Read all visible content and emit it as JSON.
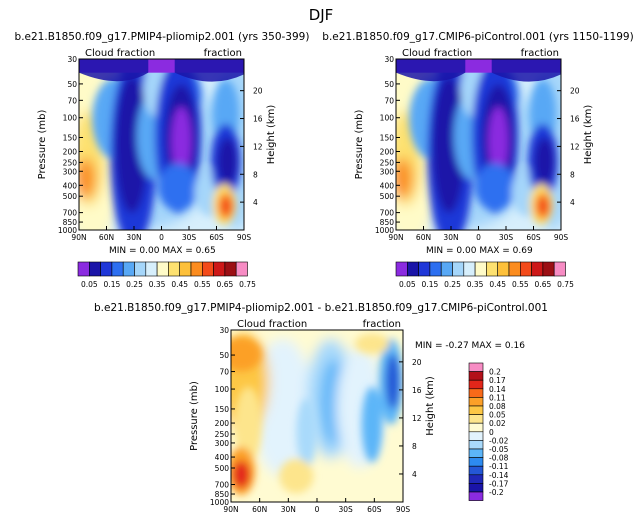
{
  "figure": {
    "title": "DJF"
  },
  "colors": {
    "seq": [
      "#8b2be0",
      "#1a14a8",
      "#1f37d8",
      "#2d6ff0",
      "#58a8f5",
      "#a5d6fa",
      "#d7effc",
      "#fffbc8",
      "#fde170",
      "#fdc03a",
      "#fb8c1f",
      "#f34a1a",
      "#cd1818",
      "#9b0f14",
      "#f78cc4"
    ],
    "div": [
      "#8b2be0",
      "#1a14a8",
      "#2028b8",
      "#2457d6",
      "#2d8bf0",
      "#5cb5f8",
      "#a9dafb",
      "#e2f3fd",
      "#fffbd2",
      "#fde58c",
      "#fdc745",
      "#fca028",
      "#f86a19",
      "#e3261a",
      "#b3101a",
      "#f78cc4"
    ]
  },
  "chart_data": [
    {
      "type": "heatmap",
      "title": "b.e21.B1850.f09_g17.PMIP4-pliomip2.001 (yrs 350-399)",
      "left_label": "Cloud fraction",
      "right_label": "fraction",
      "ylabel": "Pressure (mb)",
      "y2label": "Height (km)",
      "xticks": [
        "90N",
        "60N",
        "30N",
        "0",
        "30S",
        "60S",
        "90S"
      ],
      "yticks": [
        "1000",
        "850",
        "700",
        "500",
        "400",
        "300",
        "250",
        "200",
        "150",
        "100",
        "70",
        "50",
        "30"
      ],
      "y2ticks": [
        "4",
        "8",
        "12",
        "16",
        "20"
      ],
      "stats": {
        "min_label": "MIN =",
        "min": "0.00",
        "max_label": "MAX =",
        "max": "0.65"
      },
      "legend_levels": [
        "0.05",
        "0.1",
        "0.15",
        "0.2",
        "0.25",
        "0.3",
        "0.35",
        "0.4",
        "0.45",
        "0.5",
        "0.55",
        "0.6",
        "0.65",
        "0.7",
        "0.75"
      ],
      "legend_labels": [
        "0.05",
        "0.15",
        "0.25",
        "0.35",
        "0.45",
        "0.55",
        "0.65",
        "0.75"
      ]
    },
    {
      "type": "heatmap",
      "title": "b.e21.B1850.f09_g17.CMIP6-piControl.001 (yrs 1150-1199)",
      "left_label": "Cloud fraction",
      "right_label": "fraction",
      "ylabel": "Pressure (mb)",
      "y2label": "Height (km)",
      "xticks": [
        "90N",
        "60N",
        "30N",
        "0",
        "30S",
        "60S",
        "90S"
      ],
      "yticks": [
        "1000",
        "850",
        "700",
        "500",
        "400",
        "300",
        "250",
        "200",
        "150",
        "100",
        "70",
        "50",
        "30"
      ],
      "y2ticks": [
        "4",
        "8",
        "12",
        "16",
        "20"
      ],
      "stats": {
        "min_label": "MIN =",
        "min": "0.00",
        "max_label": "MAX =",
        "max": "0.69"
      },
      "legend_levels": [
        "0.05",
        "0.1",
        "0.15",
        "0.2",
        "0.25",
        "0.3",
        "0.35",
        "0.4",
        "0.45",
        "0.5",
        "0.55",
        "0.6",
        "0.65",
        "0.7",
        "0.75"
      ],
      "legend_labels": [
        "0.05",
        "0.15",
        "0.25",
        "0.35",
        "0.45",
        "0.55",
        "0.65",
        "0.75"
      ]
    },
    {
      "type": "heatmap",
      "title": "b.e21.B1850.f09_g17.PMIP4-pliomip2.001 - b.e21.B1850.f09_g17.CMIP6-piControl.001",
      "left_label": "Cloud fraction",
      "right_label": "fraction",
      "ylabel": "Pressure (mb)",
      "y2label": "Height (km)",
      "xticks": [
        "90N",
        "60N",
        "30N",
        "0",
        "30S",
        "60S",
        "90S"
      ],
      "yticks": [
        "1000",
        "850",
        "700",
        "500",
        "400",
        "300",
        "250",
        "200",
        "150",
        "100",
        "70",
        "50",
        "30"
      ],
      "y2ticks": [
        "4",
        "8",
        "12",
        "16",
        "20"
      ],
      "stats": {
        "min_label": "MIN =",
        "min": "-0.27",
        "max_label": "MAX =",
        "max": "0.16"
      },
      "legend_labels": [
        "0.2",
        "0.17",
        "0.14",
        "0.11",
        "0.08",
        "0.05",
        "0.02",
        "0",
        "-0.02",
        "-0.05",
        "-0.08",
        "-0.11",
        "-0.14",
        "-0.17",
        "-0.2"
      ]
    }
  ]
}
